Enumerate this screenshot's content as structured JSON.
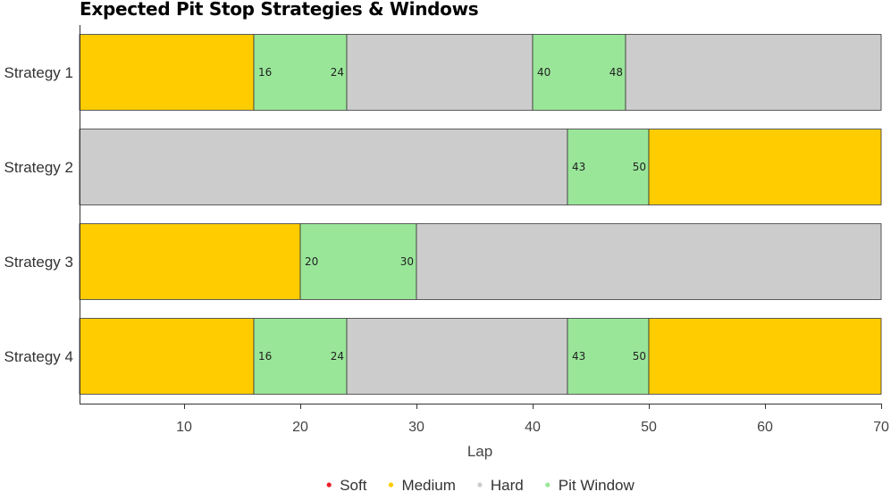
{
  "chart_data": {
    "type": "bar",
    "orientation": "horizontal-stacked",
    "title": "Expected Pit Stop Strategies & Windows",
    "xlabel": "Lap",
    "ylabel": "",
    "xlim": [
      1,
      70
    ],
    "xticks": [
      10,
      20,
      30,
      40,
      50,
      60,
      70
    ],
    "grid": false,
    "legend_position": "bottom",
    "legend": [
      {
        "name": "Soft",
        "color": "#e8202a"
      },
      {
        "name": "Medium",
        "color": "#ffcc00"
      },
      {
        "name": "Hard",
        "color": "#cccccc"
      },
      {
        "name": "Pit Window",
        "color": "#99e699"
      }
    ],
    "categories": [
      "Strategy 1",
      "Strategy 2",
      "Strategy 3",
      "Strategy 4"
    ],
    "strategies": [
      {
        "name": "Strategy 1",
        "segments": [
          {
            "type": "Medium",
            "start": 1,
            "end": 16
          },
          {
            "type": "Pit Window",
            "start": 16,
            "end": 24
          },
          {
            "type": "Hard",
            "start": 24,
            "end": 40
          },
          {
            "type": "Pit Window",
            "start": 40,
            "end": 48
          },
          {
            "type": "Hard",
            "start": 48,
            "end": 70
          }
        ]
      },
      {
        "name": "Strategy 2",
        "segments": [
          {
            "type": "Hard",
            "start": 1,
            "end": 43
          },
          {
            "type": "Pit Window",
            "start": 43,
            "end": 50
          },
          {
            "type": "Medium",
            "start": 50,
            "end": 70
          }
        ]
      },
      {
        "name": "Strategy 3",
        "segments": [
          {
            "type": "Medium",
            "start": 1,
            "end": 20
          },
          {
            "type": "Pit Window",
            "start": 20,
            "end": 30
          },
          {
            "type": "Hard",
            "start": 30,
            "end": 70
          }
        ]
      },
      {
        "name": "Strategy 4",
        "segments": [
          {
            "type": "Medium",
            "start": 1,
            "end": 16
          },
          {
            "type": "Pit Window",
            "start": 16,
            "end": 24
          },
          {
            "type": "Hard",
            "start": 24,
            "end": 43
          },
          {
            "type": "Pit Window",
            "start": 43,
            "end": 50
          },
          {
            "type": "Medium",
            "start": 50,
            "end": 70
          }
        ]
      }
    ]
  }
}
